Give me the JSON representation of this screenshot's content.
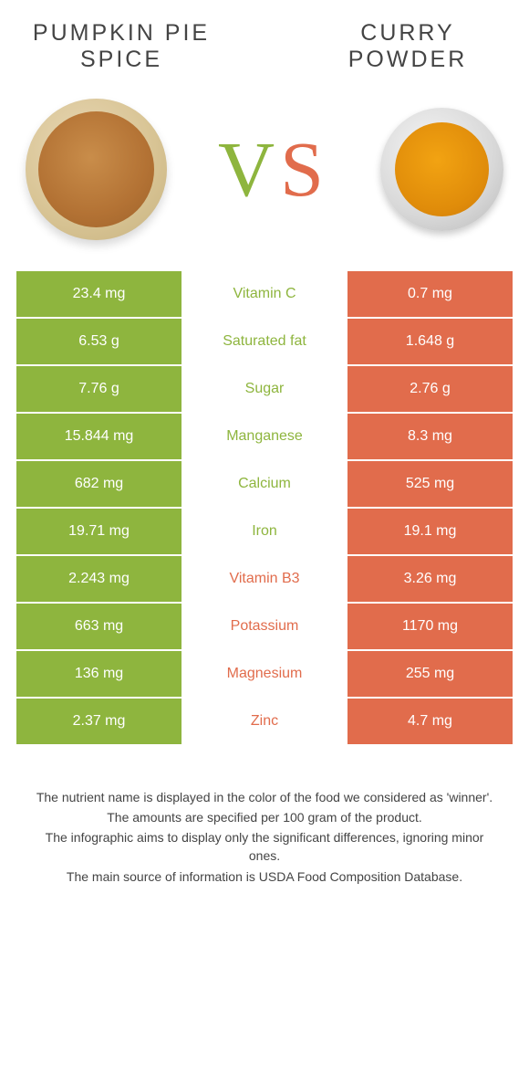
{
  "colors": {
    "green": "#8eb53e",
    "orange": "#e16c4c",
    "winner_text_green": "#8eb53e",
    "winner_text_orange": "#e16c4c",
    "cell_text": "#ffffff"
  },
  "item_left": {
    "title_line1": "PUMPKIN PIE",
    "title_line2": "SPICE"
  },
  "item_right": {
    "title_line1": "CURRY",
    "title_line2": "POWDER"
  },
  "vs": {
    "v": "V",
    "s": "S"
  },
  "rows": [
    {
      "nutrient": "Vitamin C",
      "left": "23.4 mg",
      "right": "0.7 mg",
      "winner": "left"
    },
    {
      "nutrient": "Saturated fat",
      "left": "6.53 g",
      "right": "1.648 g",
      "winner": "left"
    },
    {
      "nutrient": "Sugar",
      "left": "7.76 g",
      "right": "2.76 g",
      "winner": "left"
    },
    {
      "nutrient": "Manganese",
      "left": "15.844 mg",
      "right": "8.3 mg",
      "winner": "left"
    },
    {
      "nutrient": "Calcium",
      "left": "682 mg",
      "right": "525 mg",
      "winner": "left"
    },
    {
      "nutrient": "Iron",
      "left": "19.71 mg",
      "right": "19.1 mg",
      "winner": "left"
    },
    {
      "nutrient": "Vitamin B3",
      "left": "2.243 mg",
      "right": "3.26 mg",
      "winner": "right"
    },
    {
      "nutrient": "Potassium",
      "left": "663 mg",
      "right": "1170 mg",
      "winner": "right"
    },
    {
      "nutrient": "Magnesium",
      "left": "136 mg",
      "right": "255 mg",
      "winner": "right"
    },
    {
      "nutrient": "Zinc",
      "left": "2.37 mg",
      "right": "4.7 mg",
      "winner": "right"
    }
  ],
  "footer": {
    "l1": "The nutrient name is displayed in the color of the food we considered as 'winner'.",
    "l2": "The amounts are specified per 100 gram of the product.",
    "l3": "The infographic aims to display only the significant differences, ignoring minor ones.",
    "l4": "The main source of information is USDA Food Composition Database."
  }
}
